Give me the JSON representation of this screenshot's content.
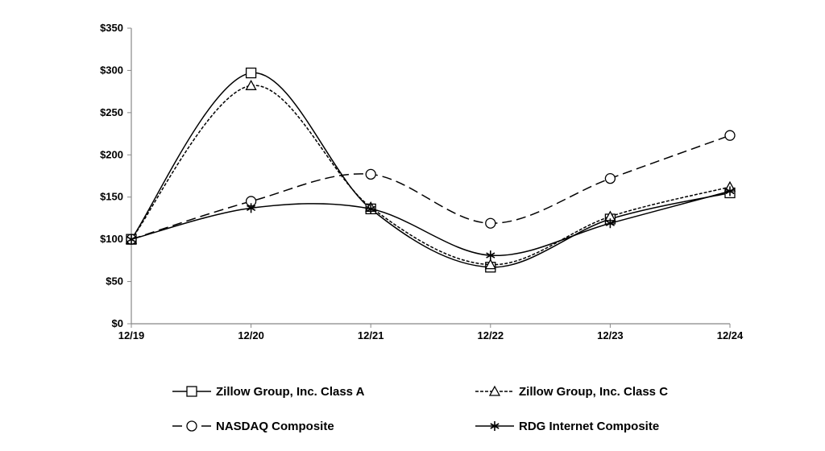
{
  "chart_data": {
    "type": "line",
    "title": "",
    "xlabel": "",
    "ylabel": "",
    "categories": [
      "12/19",
      "12/20",
      "12/21",
      "12/22",
      "12/23",
      "12/24"
    ],
    "ylim": [
      0,
      350
    ],
    "yticks": [
      0,
      50,
      100,
      150,
      200,
      250,
      300,
      350
    ],
    "ytick_labels": [
      "$0",
      "$50",
      "$100",
      "$150",
      "$200",
      "$250",
      "$300",
      "$350"
    ],
    "grid": false,
    "legend_position": "bottom",
    "series": [
      {
        "name": "Zillow Group, Inc. Class A",
        "values": [
          100,
          297,
          136,
          67,
          124,
          155
        ],
        "marker": "square",
        "dash": "solid",
        "color": "#000000"
      },
      {
        "name": "Zillow Group, Inc. Class C",
        "values": [
          100,
          282,
          138,
          70,
          127,
          162
        ],
        "marker": "triangle",
        "dash": "dotted",
        "color": "#000000"
      },
      {
        "name": "NASDAQ Composite",
        "values": [
          100,
          145,
          177,
          119,
          172,
          223
        ],
        "marker": "circle",
        "dash": "dashed",
        "color": "#000000"
      },
      {
        "name": "RDG Internet Composite",
        "values": [
          100,
          137,
          136,
          81,
          119,
          157
        ],
        "marker": "asterisk",
        "dash": "solid",
        "color": "#000000"
      }
    ]
  }
}
